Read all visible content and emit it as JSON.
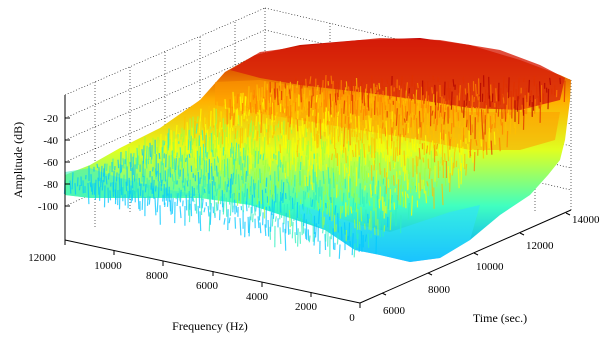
{
  "chart_data": {
    "type": "surface3d",
    "title": "",
    "xlabel": "Frequency (Hz)",
    "ylabel": "Time (sec.)",
    "zlabel": "Amplitude (dB)",
    "x_ticks": [
      "12000",
      "10000",
      "8000",
      "6000",
      "4000",
      "2000",
      "0"
    ],
    "y_ticks": [
      "6000",
      "8000",
      "10000",
      "12000",
      "14000"
    ],
    "z_ticks": [
      "-20",
      "-40",
      "-60",
      "-80",
      "-100"
    ],
    "xlim": [
      0,
      12000
    ],
    "ylim": [
      5000,
      14500
    ],
    "zlim": [
      -110,
      -10
    ],
    "grid": true,
    "colormap": "jet",
    "colors": {
      "low": "#00007f",
      "mid_low": "#00ffff",
      "mid": "#ffff00",
      "mid_high": "#ff7f00",
      "high": "#7f0000"
    },
    "surface_description": "Spectrogram amplitude surface: roughly -75 dB at high frequencies and early times, rising to about -20 dB at low frequencies and late times",
    "samples": [
      {
        "frequency": 11000,
        "time": 6000,
        "amplitude": -75
      },
      {
        "frequency": 11000,
        "time": 14000,
        "amplitude": -60
      },
      {
        "frequency": 6000,
        "time": 6000,
        "amplitude": -70
      },
      {
        "frequency": 6000,
        "time": 14000,
        "amplitude": -35
      },
      {
        "frequency": 1000,
        "time": 6000,
        "amplitude": -55
      },
      {
        "frequency": 1000,
        "time": 14000,
        "amplitude": -20
      }
    ]
  }
}
